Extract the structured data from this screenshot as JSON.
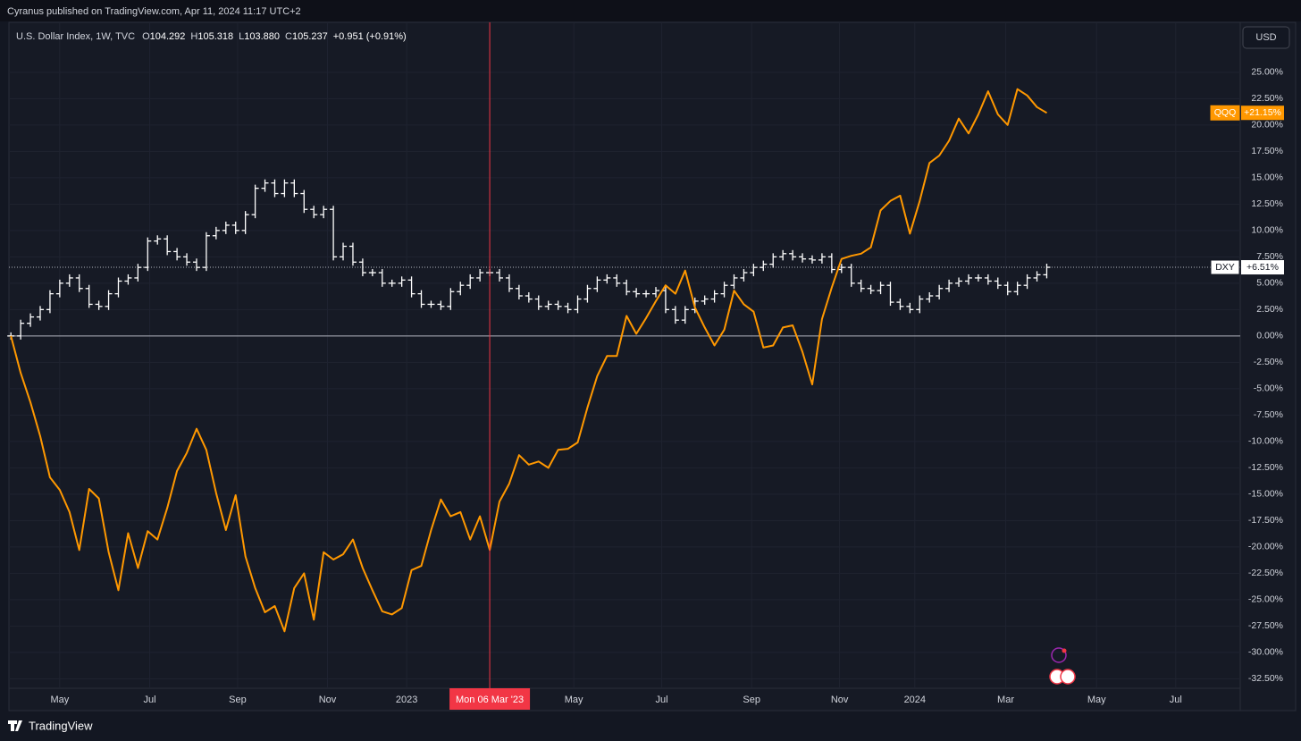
{
  "header": {
    "publisher": "Cyranus published on TradingView.com, Apr 11, 2024 11:17 UTC+2"
  },
  "footer": {
    "brand": "TradingView"
  },
  "currency_button": "USD",
  "chart_data": {
    "type": "line",
    "title": "U.S. Dollar Index, 1W, TVC",
    "legend_fields": [
      {
        "key": "O",
        "value": "104.292"
      },
      {
        "key": "H",
        "value": "105.318"
      },
      {
        "key": "L",
        "value": "103.880"
      },
      {
        "key": "C",
        "value": "105.237"
      }
    ],
    "change": "+0.951 (+0.91%)",
    "xlim": [
      -0.2,
      125.8
    ],
    "xticks": [
      {
        "value": 5.0,
        "label": "May"
      },
      {
        "value": 14.2,
        "label": "Jul"
      },
      {
        "value": 23.2,
        "label": "Sep"
      },
      {
        "value": 32.4,
        "label": "Nov"
      },
      {
        "value": 40.5,
        "label": "2023"
      },
      {
        "value": 57.6,
        "label": "May"
      },
      {
        "value": 66.6,
        "label": "Jul"
      },
      {
        "value": 75.8,
        "label": "Sep"
      },
      {
        "value": 84.8,
        "label": "Nov"
      },
      {
        "value": 92.5,
        "label": "2024"
      },
      {
        "value": 101.8,
        "label": "Mar"
      },
      {
        "value": 111.1,
        "label": "May"
      },
      {
        "value": 119.2,
        "label": "Jul"
      }
    ],
    "ylim": [
      -33.4,
      29.73
    ],
    "yticks": [
      {
        "value": 25,
        "label": "25.00%"
      },
      {
        "value": 22.5,
        "label": "22.50%"
      },
      {
        "value": 20,
        "label": "20.00%"
      },
      {
        "value": 17.5,
        "label": "17.50%"
      },
      {
        "value": 15,
        "label": "15.00%"
      },
      {
        "value": 12.5,
        "label": "12.50%"
      },
      {
        "value": 10,
        "label": "10.00%"
      },
      {
        "value": 7.5,
        "label": "7.50%"
      },
      {
        "value": 5,
        "label": "5.00%"
      },
      {
        "value": 2.5,
        "label": "2.50%"
      },
      {
        "value": 0,
        "label": "0.00%"
      },
      {
        "value": -2.5,
        "label": "-2.50%"
      },
      {
        "value": -5,
        "label": "-5.00%"
      },
      {
        "value": -7.5,
        "label": "-7.50%"
      },
      {
        "value": -10,
        "label": "-10.00%"
      },
      {
        "value": -12.5,
        "label": "-12.50%"
      },
      {
        "value": -15,
        "label": "-15.00%"
      },
      {
        "value": -17.5,
        "label": "-17.50%"
      },
      {
        "value": -20,
        "label": "-20.00%"
      },
      {
        "value": -22.5,
        "label": "-22.50%"
      },
      {
        "value": -25,
        "label": "-25.00%"
      },
      {
        "value": -27.5,
        "label": "-27.50%"
      },
      {
        "value": -30,
        "label": "-30.00%"
      },
      {
        "value": -32.5,
        "label": "-32.50%"
      }
    ],
    "grid": true,
    "crosshair": {
      "index": 49,
      "label": "Mon 06 Mar '23"
    },
    "series": [
      {
        "name": "DXY",
        "style": "bars",
        "color": "#ffffff",
        "last_label": "+6.51%",
        "values": [
          0,
          1.2,
          1.8,
          2.5,
          4,
          5,
          5.5,
          4.5,
          3,
          2.8,
          4,
          5.2,
          5.5,
          6.5,
          9,
          9.2,
          8,
          7.5,
          7,
          6.5,
          9.5,
          10,
          10.5,
          10,
          11.5,
          14,
          14.5,
          13.5,
          14.5,
          13.5,
          12,
          11.5,
          12,
          7.5,
          8.5,
          7,
          6,
          6,
          5,
          5,
          5.3,
          4,
          3,
          3,
          2.8,
          4.2,
          4.8,
          5.5,
          6,
          6,
          5.5,
          4.5,
          3.8,
          3.5,
          2.8,
          3,
          2.8,
          2.5,
          3.5,
          4.5,
          5.3,
          5.5,
          5,
          4.2,
          4,
          4,
          4.3,
          2.5,
          1.5,
          2.5,
          3.3,
          3.5,
          4,
          4.8,
          5.5,
          6,
          6.5,
          6.8,
          7.5,
          7.8,
          7.5,
          7.3,
          7.2,
          7.5,
          6.3,
          6.5,
          5,
          4.5,
          4.3,
          4.8,
          3.2,
          2.8,
          2.5,
          3.5,
          3.8,
          4.5,
          5,
          5.2,
          5.5,
          5.5,
          5.2,
          4.8,
          4.2,
          4.8,
          5.5,
          5.8,
          6.51
        ]
      },
      {
        "name": "QQQ",
        "style": "line",
        "color": "#ff9800",
        "last_label": "+21.15%",
        "values": [
          0,
          -3.5,
          -6.3,
          -9.5,
          -13.4,
          -14.6,
          -16.7,
          -20.3,
          -14.5,
          -15.4,
          -20.5,
          -24.1,
          -18.7,
          -22.0,
          -18.5,
          -19.3,
          -16.3,
          -12.8,
          -11.1,
          -8.8,
          -10.8,
          -14.9,
          -18.4,
          -15.1,
          -20.9,
          -23.9,
          -26.2,
          -25.6,
          -28.0,
          -23.9,
          -22.5,
          -26.9,
          -20.5,
          -21.2,
          -20.7,
          -19.3,
          -22.0,
          -24.1,
          -26.1,
          -26.4,
          -25.8,
          -22.2,
          -21.8,
          -18.4,
          -15.5,
          -17.1,
          -16.7,
          -19.3,
          -17.1,
          -20.3,
          -15.7,
          -14.0,
          -11.3,
          -12.2,
          -11.9,
          -12.5,
          -10.8,
          -10.7,
          -10.1,
          -6.8,
          -3.8,
          -1.9,
          -1.9,
          1.9,
          0.2,
          1.7,
          3.3,
          4.8,
          4.0,
          6.2,
          2.7,
          0.8,
          -0.9,
          0.6,
          4.3,
          3.0,
          2.3,
          -1.1,
          -0.9,
          0.8,
          1.0,
          -1.5,
          -4.6,
          1.6,
          4.6,
          7.3,
          7.6,
          7.8,
          8.4,
          11.9,
          12.8,
          13.3,
          9.7,
          12.8,
          16.4,
          17.1,
          18.5,
          20.6,
          19.2,
          21.0,
          23.2,
          21.0,
          20.0,
          23.4,
          22.8,
          21.7,
          21.15
        ]
      }
    ]
  }
}
